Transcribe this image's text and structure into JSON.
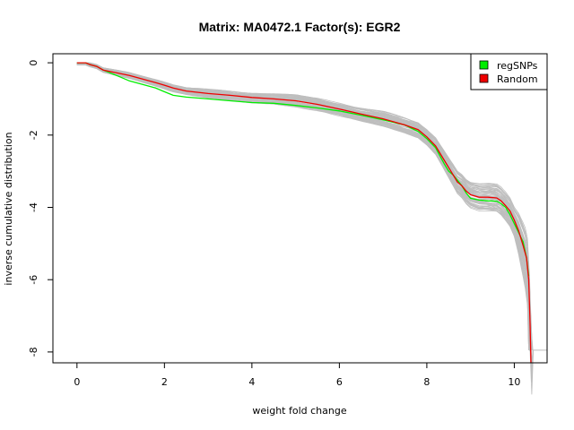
{
  "chart_data": {
    "type": "line",
    "title": "Matrix: MA0472.1 Factor(s): EGR2",
    "xlabel": "weight fold change",
    "ylabel": "inverse cumulative distribution",
    "xlim": [
      -0.55,
      10.75
    ],
    "ylim": [
      -8.3,
      0.25
    ],
    "x_ticks": [
      0,
      2,
      4,
      6,
      8,
      10
    ],
    "y_ticks": [
      0,
      -2,
      -4,
      -6,
      -8
    ],
    "grid": false,
    "legend_position": "top-right",
    "legend": [
      {
        "label": "regSNPs",
        "color": "#00ee00"
      },
      {
        "label": "Random",
        "color": "#ee0000"
      }
    ],
    "colors": {
      "random_bg": "#bebebe",
      "regsnps": "#00ee00",
      "random": "#ee0000"
    },
    "series": [
      {
        "name": "regSNPs",
        "color": "#00ee00",
        "x": [
          0,
          0.2,
          0.3,
          0.45,
          0.6,
          0.8,
          1.0,
          1.2,
          1.5,
          1.8,
          2.0,
          2.2,
          2.5,
          3.0,
          3.5,
          4.0,
          4.5,
          5.0,
          5.5,
          6.0,
          6.5,
          7.0,
          7.5,
          7.8,
          8.0,
          8.2,
          8.4,
          8.5,
          8.6,
          8.7,
          8.8,
          8.9,
          9.0,
          9.2,
          9.4,
          9.6,
          9.7,
          9.8,
          9.9,
          10.0,
          10.1,
          10.2,
          10.28,
          10.33
        ],
        "y": [
          0,
          0,
          -0.05,
          -0.1,
          -0.2,
          -0.3,
          -0.4,
          -0.5,
          -0.6,
          -0.7,
          -0.8,
          -0.9,
          -0.95,
          -1.0,
          -1.05,
          -1.1,
          -1.12,
          -1.18,
          -1.25,
          -1.33,
          -1.45,
          -1.58,
          -1.72,
          -1.9,
          -2.1,
          -2.35,
          -2.8,
          -3.0,
          -3.1,
          -3.25,
          -3.4,
          -3.6,
          -3.75,
          -3.8,
          -3.82,
          -3.83,
          -3.9,
          -4.0,
          -4.2,
          -4.45,
          -4.7,
          -4.95,
          -5.4,
          -5.9
        ]
      },
      {
        "name": "Random",
        "color": "#ee0000",
        "x": [
          0,
          0.2,
          0.3,
          0.45,
          0.6,
          0.8,
          1.0,
          1.2,
          1.5,
          1.8,
          2.0,
          2.2,
          2.5,
          3.0,
          3.5,
          4.0,
          4.5,
          5.0,
          5.5,
          6.0,
          6.5,
          7.0,
          7.5,
          7.8,
          8.0,
          8.2,
          8.4,
          8.5,
          8.6,
          8.7,
          8.8,
          8.9,
          9.0,
          9.2,
          9.4,
          9.6,
          9.7,
          9.8,
          9.9,
          10.0,
          10.1,
          10.2,
          10.28,
          10.33,
          10.36,
          10.38
        ],
        "y": [
          0,
          0,
          -0.05,
          -0.1,
          -0.2,
          -0.25,
          -0.3,
          -0.35,
          -0.45,
          -0.55,
          -0.62,
          -0.7,
          -0.78,
          -0.85,
          -0.9,
          -0.96,
          -1.0,
          -1.05,
          -1.15,
          -1.28,
          -1.42,
          -1.55,
          -1.72,
          -1.85,
          -2.05,
          -2.3,
          -2.7,
          -2.9,
          -3.1,
          -3.3,
          -3.4,
          -3.55,
          -3.65,
          -3.72,
          -3.72,
          -3.74,
          -3.82,
          -3.95,
          -4.1,
          -4.35,
          -4.65,
          -5.05,
          -5.4,
          -6.0,
          -7.2,
          -8.3
        ]
      }
    ],
    "background_series_count": 60,
    "background_tail": {
      "x": [
        10.42,
        10.75
      ],
      "y": -7.95
    }
  }
}
